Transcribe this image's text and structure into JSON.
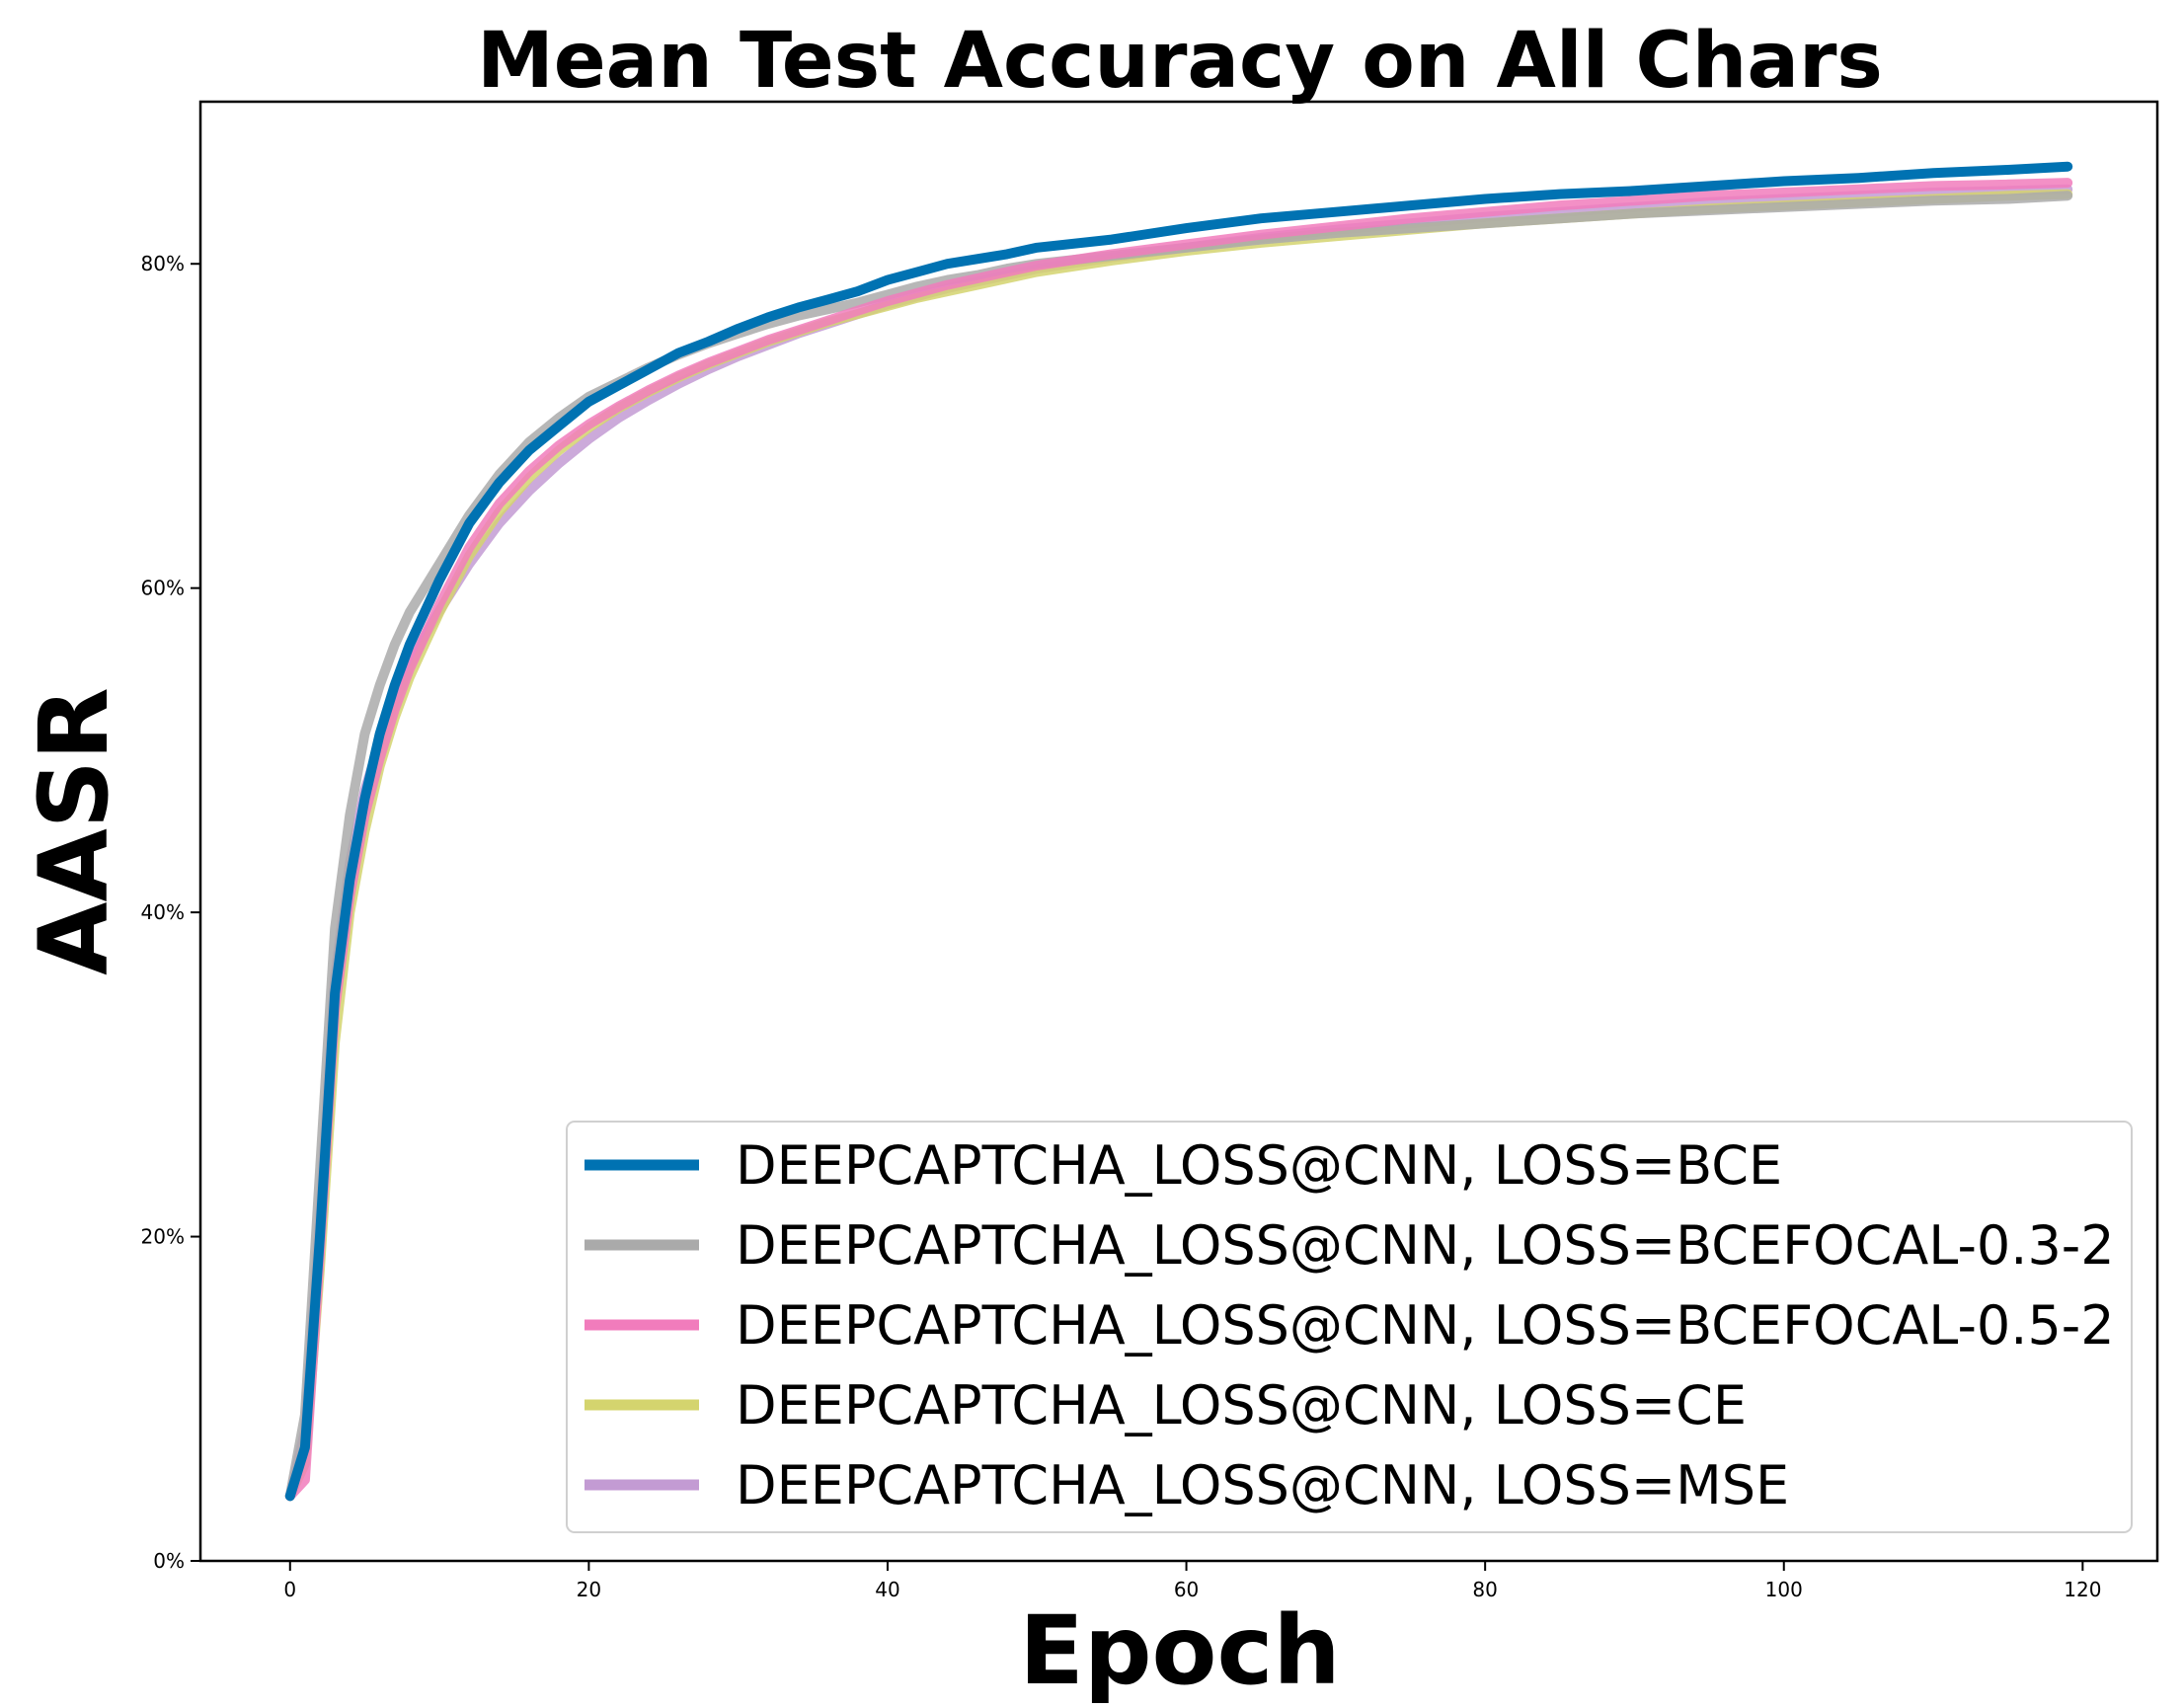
{
  "chart_data": {
    "type": "line",
    "title": "Mean Test Accuracy on All Chars",
    "xlabel": "Epoch",
    "ylabel": "AASR",
    "xlim": [
      -6,
      125
    ],
    "ylim": [
      0,
      0.9
    ],
    "xticks": [
      0,
      20,
      40,
      60,
      80,
      100,
      120
    ],
    "xtick_labels": [
      "0",
      "20",
      "40",
      "60",
      "80",
      "100",
      "120"
    ],
    "yticks": [
      0,
      0.2,
      0.4,
      0.6,
      0.8
    ],
    "ytick_labels": [
      "0%",
      "20%",
      "40%",
      "60%",
      "80%"
    ],
    "grid": false,
    "legend_position": "lower-right",
    "x": [
      0,
      1,
      2,
      3,
      4,
      5,
      6,
      7,
      8,
      9,
      10,
      12,
      14,
      16,
      18,
      20,
      22,
      24,
      26,
      28,
      30,
      32,
      34,
      36,
      38,
      40,
      42,
      44,
      46,
      48,
      50,
      55,
      60,
      65,
      70,
      75,
      80,
      85,
      90,
      95,
      100,
      105,
      110,
      115,
      119
    ],
    "series": [
      {
        "name": "DEEPCAPTCHA_LOSS@CNN, LOSS=BCE",
        "color": "#0072B2",
        "values": [
          0.04,
          0.07,
          0.2,
          0.35,
          0.42,
          0.47,
          0.51,
          0.54,
          0.565,
          0.585,
          0.605,
          0.64,
          0.665,
          0.685,
          0.7,
          0.715,
          0.725,
          0.735,
          0.745,
          0.752,
          0.76,
          0.767,
          0.773,
          0.778,
          0.783,
          0.79,
          0.795,
          0.8,
          0.803,
          0.806,
          0.81,
          0.815,
          0.822,
          0.828,
          0.832,
          0.836,
          0.84,
          0.843,
          0.845,
          0.848,
          0.851,
          0.853,
          0.856,
          0.858,
          0.86
        ]
      },
      {
        "name": "DEEPCAPTCHA_LOSS@CNN, LOSS=BCEFOCAL-0.3-2",
        "color": "#AAAAAA",
        "values": [
          0.04,
          0.09,
          0.24,
          0.39,
          0.46,
          0.51,
          0.54,
          0.565,
          0.585,
          0.6,
          0.615,
          0.645,
          0.67,
          0.69,
          0.705,
          0.718,
          0.727,
          0.736,
          0.744,
          0.751,
          0.757,
          0.763,
          0.768,
          0.772,
          0.776,
          0.781,
          0.786,
          0.79,
          0.793,
          0.797,
          0.8,
          0.805,
          0.81,
          0.815,
          0.819,
          0.822,
          0.825,
          0.828,
          0.831,
          0.833,
          0.835,
          0.837,
          0.839,
          0.84,
          0.842
        ]
      },
      {
        "name": "DEEPCAPTCHA_LOSS@CNN, LOSS=BCEFOCAL-0.5-2",
        "color": "#F17CBC",
        "values": [
          0.04,
          0.05,
          0.19,
          0.34,
          0.41,
          0.46,
          0.495,
          0.525,
          0.55,
          0.57,
          0.59,
          0.625,
          0.652,
          0.672,
          0.688,
          0.701,
          0.712,
          0.722,
          0.731,
          0.739,
          0.746,
          0.753,
          0.759,
          0.765,
          0.771,
          0.777,
          0.782,
          0.787,
          0.791,
          0.795,
          0.799,
          0.806,
          0.812,
          0.818,
          0.823,
          0.828,
          0.832,
          0.836,
          0.839,
          0.842,
          0.844,
          0.846,
          0.848,
          0.849,
          0.85
        ]
      },
      {
        "name": "DEEPCAPTCHA_LOSS@CNN, LOSS=CE",
        "color": "#D4D46E",
        "values": [
          0.04,
          0.06,
          0.18,
          0.32,
          0.4,
          0.45,
          0.49,
          0.52,
          0.545,
          0.565,
          0.585,
          0.62,
          0.647,
          0.668,
          0.685,
          0.699,
          0.711,
          0.721,
          0.73,
          0.738,
          0.745,
          0.752,
          0.758,
          0.764,
          0.769,
          0.774,
          0.779,
          0.783,
          0.787,
          0.791,
          0.795,
          0.802,
          0.808,
          0.813,
          0.817,
          0.821,
          0.825,
          0.828,
          0.831,
          0.834,
          0.836,
          0.838,
          0.84,
          0.842,
          0.843
        ]
      },
      {
        "name": "DEEPCAPTCHA_LOSS@CNN, LOSS=MSE",
        "color": "#C39BD3",
        "values": [
          0.04,
          0.08,
          0.21,
          0.36,
          0.43,
          0.475,
          0.505,
          0.53,
          0.552,
          0.57,
          0.586,
          0.615,
          0.64,
          0.66,
          0.677,
          0.692,
          0.705,
          0.716,
          0.726,
          0.735,
          0.743,
          0.75,
          0.757,
          0.763,
          0.769,
          0.775,
          0.78,
          0.785,
          0.789,
          0.793,
          0.797,
          0.804,
          0.81,
          0.816,
          0.821,
          0.825,
          0.829,
          0.832,
          0.835,
          0.838,
          0.84,
          0.842,
          0.844,
          0.845,
          0.846
        ]
      }
    ]
  }
}
